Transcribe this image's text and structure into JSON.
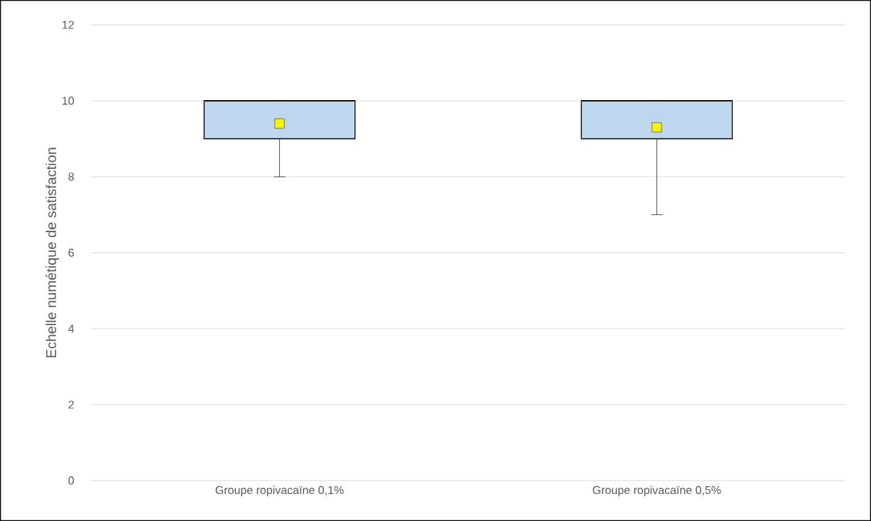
{
  "chart_data": {
    "type": "box",
    "ylabel": "Echelle numétique de satisfaction",
    "categories": [
      "Groupe ropivacaïne 0,1%",
      "Groupe ropivacaïne 0,5%"
    ],
    "boxes": [
      {
        "low": 8,
        "q1": 9,
        "median": 10,
        "q3": 10,
        "high": 10,
        "mean": 9.4
      },
      {
        "low": 7,
        "q1": 9,
        "median": 10,
        "q3": 10,
        "high": 10,
        "mean": 9.3
      }
    ],
    "color": "#bdd7ee",
    "ylim": [
      0,
      12
    ],
    "yticks": [
      0,
      2,
      4,
      6,
      8,
      10,
      12
    ],
    "grid": "y"
  }
}
